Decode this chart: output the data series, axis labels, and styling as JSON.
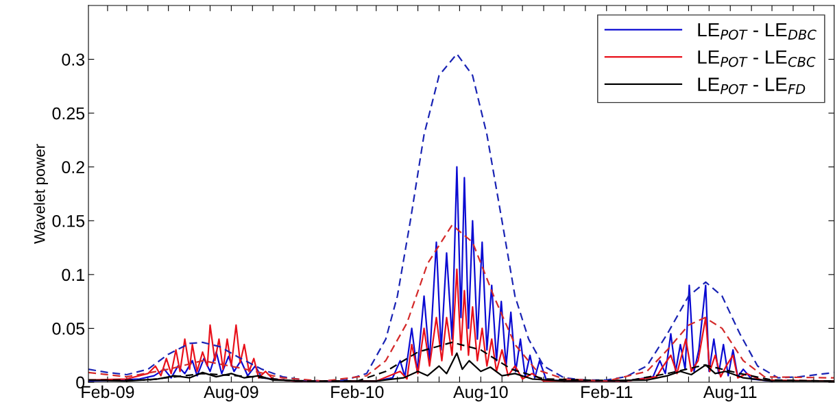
{
  "chart_data": {
    "type": "line",
    "ylabel": "Wavelet power",
    "xlim": [
      "2009-01-04",
      "2011-12-31"
    ],
    "ylim": [
      0,
      0.35
    ],
    "yticks": [
      0,
      0.05,
      0.1,
      0.15,
      0.2,
      0.25,
      0.3
    ],
    "xticks": [
      {
        "value": "2009-02-01",
        "label": "Feb-09"
      },
      {
        "value": "2009-03-01",
        "label": null
      },
      {
        "value": "2009-04-01",
        "label": null
      },
      {
        "value": "2009-05-01",
        "label": null
      },
      {
        "value": "2009-06-01",
        "label": null
      },
      {
        "value": "2009-07-01",
        "label": null
      },
      {
        "value": "2009-08-01",
        "label": "Aug-09"
      },
      {
        "value": "2009-09-01",
        "label": null
      },
      {
        "value": "2009-10-01",
        "label": null
      },
      {
        "value": "2009-11-01",
        "label": null
      },
      {
        "value": "2009-12-01",
        "label": null
      },
      {
        "value": "2010-01-01",
        "label": null
      },
      {
        "value": "2010-02-01",
        "label": "Feb-10"
      },
      {
        "value": "2010-03-01",
        "label": null
      },
      {
        "value": "2010-04-01",
        "label": null
      },
      {
        "value": "2010-05-01",
        "label": null
      },
      {
        "value": "2010-06-01",
        "label": null
      },
      {
        "value": "2010-07-01",
        "label": null
      },
      {
        "value": "2010-08-01",
        "label": "Aug-10"
      },
      {
        "value": "2010-09-01",
        "label": null
      },
      {
        "value": "2010-10-01",
        "label": null
      },
      {
        "value": "2010-11-01",
        "label": null
      },
      {
        "value": "2010-12-01",
        "label": null
      },
      {
        "value": "2011-01-01",
        "label": null
      },
      {
        "value": "2011-02-01",
        "label": "Feb-11"
      },
      {
        "value": "2011-03-01",
        "label": null
      },
      {
        "value": "2011-04-01",
        "label": null
      },
      {
        "value": "2011-05-01",
        "label": null
      },
      {
        "value": "2011-06-01",
        "label": null
      },
      {
        "value": "2011-07-01",
        "label": null
      },
      {
        "value": "2011-08-01",
        "label": "Aug-11"
      },
      {
        "value": "2011-09-01",
        "label": null
      },
      {
        "value": "2011-10-01",
        "label": null
      },
      {
        "value": "2011-11-01",
        "label": null
      },
      {
        "value": "2011-12-01",
        "label": null
      }
    ],
    "grid": false,
    "legend": "top right",
    "series": [
      {
        "name": "LE$_{POT}$ - LE$_{DBC}$",
        "color": "#0a0ad2",
        "line_style": "solid",
        "x": [
          "2009-01-04",
          "2009-02-15",
          "2009-03-20",
          "2009-04-10",
          "2009-04-25",
          "2009-05-05",
          "2009-05-15",
          "2009-05-25",
          "2009-06-05",
          "2009-06-12",
          "2009-06-22",
          "2009-07-01",
          "2009-07-10",
          "2009-07-18",
          "2009-07-28",
          "2009-08-05",
          "2009-08-15",
          "2009-08-25",
          "2009-09-05",
          "2009-09-15",
          "2009-10-01",
          "2009-11-01",
          "2010-01-01",
          "2010-03-01",
          "2010-03-25",
          "2010-04-05",
          "2010-04-12",
          "2010-04-22",
          "2010-04-30",
          "2010-05-10",
          "2010-05-18",
          "2010-05-28",
          "2010-06-04",
          "2010-06-12",
          "2010-06-20",
          "2010-06-27",
          "2010-07-03",
          "2010-07-08",
          "2010-07-14",
          "2010-07-20",
          "2010-07-27",
          "2010-08-03",
          "2010-08-10",
          "2010-08-17",
          "2010-08-24",
          "2010-08-31",
          "2010-09-07",
          "2010-09-14",
          "2010-09-21",
          "2010-09-28",
          "2010-10-05",
          "2010-10-12",
          "2010-10-19",
          "2010-10-26",
          "2010-11-05",
          "2010-12-15",
          "2011-03-01",
          "2011-04-10",
          "2011-04-20",
          "2011-04-28",
          "2011-05-06",
          "2011-05-13",
          "2011-05-20",
          "2011-05-27",
          "2011-06-02",
          "2011-06-09",
          "2011-06-16",
          "2011-06-26",
          "2011-07-01",
          "2011-07-08",
          "2011-07-15",
          "2011-07-22",
          "2011-07-29",
          "2011-08-05",
          "2011-08-12",
          "2011-08-20",
          "2011-09-01",
          "2011-10-01"
        ],
        "values": [
          0.001,
          0.002,
          0.003,
          0.006,
          0.012,
          0.004,
          0.015,
          0.008,
          0.02,
          0.006,
          0.022,
          0.01,
          0.028,
          0.008,
          0.024,
          0.01,
          0.02,
          0.006,
          0.015,
          0.004,
          0.003,
          0.001,
          0.001,
          0.001,
          0.004,
          0.02,
          0.005,
          0.05,
          0.01,
          0.08,
          0.02,
          0.13,
          0.03,
          0.12,
          0.04,
          0.2,
          0.06,
          0.19,
          0.05,
          0.15,
          0.04,
          0.13,
          0.03,
          0.09,
          0.02,
          0.075,
          0.015,
          0.065,
          0.01,
          0.04,
          0.005,
          0.025,
          0.004,
          0.02,
          0.002,
          0.001,
          0.001,
          0.005,
          0.02,
          0.008,
          0.045,
          0.01,
          0.035,
          0.012,
          0.09,
          0.01,
          0.03,
          0.09,
          0.01,
          0.04,
          0.008,
          0.035,
          0.006,
          0.03,
          0.005,
          0.012,
          0.003,
          0.001
        ]
      },
      {
        "name": "LE$_{POT}$ - LE$_{CBC}$",
        "color": "#e8101a",
        "line_style": "solid",
        "x": [
          "2009-01-04",
          "2009-03-01",
          "2009-04-01",
          "2009-04-12",
          "2009-04-20",
          "2009-04-28",
          "2009-05-05",
          "2009-05-12",
          "2009-05-18",
          "2009-05-25",
          "2009-06-01",
          "2009-06-05",
          "2009-06-12",
          "2009-06-20",
          "2009-06-27",
          "2009-07-01",
          "2009-07-08",
          "2009-07-14",
          "2009-07-20",
          "2009-07-26",
          "2009-08-01",
          "2009-08-08",
          "2009-08-14",
          "2009-08-20",
          "2009-08-27",
          "2009-09-03",
          "2009-09-10",
          "2009-09-20",
          "2009-10-01",
          "2009-11-01",
          "2010-03-01",
          "2010-04-05",
          "2010-04-15",
          "2010-04-22",
          "2010-05-01",
          "2010-05-10",
          "2010-05-18",
          "2010-05-28",
          "2010-06-05",
          "2010-06-12",
          "2010-06-20",
          "2010-06-27",
          "2010-07-03",
          "2010-07-08",
          "2010-07-14",
          "2010-07-20",
          "2010-07-27",
          "2010-08-03",
          "2010-08-10",
          "2010-08-17",
          "2010-08-24",
          "2010-09-01",
          "2010-09-10",
          "2010-09-20",
          "2010-10-01",
          "2010-10-15",
          "2010-11-01",
          "2011-03-01",
          "2011-04-15",
          "2011-04-25",
          "2011-05-06",
          "2011-05-15",
          "2011-05-28",
          "2011-06-05",
          "2011-06-15",
          "2011-06-26",
          "2011-07-02",
          "2011-07-10",
          "2011-07-18",
          "2011-07-26",
          "2011-08-05",
          "2011-08-12",
          "2011-08-25",
          "2011-09-15",
          "2011-12-31"
        ],
        "values": [
          0.002,
          0.003,
          0.008,
          0.015,
          0.006,
          0.022,
          0.008,
          0.03,
          0.01,
          0.04,
          0.012,
          0.035,
          0.01,
          0.028,
          0.015,
          0.053,
          0.02,
          0.04,
          0.012,
          0.04,
          0.015,
          0.053,
          0.018,
          0.035,
          0.01,
          0.022,
          0.004,
          0.01,
          0.003,
          0.001,
          0.001,
          0.01,
          0.003,
          0.035,
          0.008,
          0.05,
          0.015,
          0.06,
          0.02,
          0.06,
          0.025,
          0.105,
          0.03,
          0.085,
          0.025,
          0.07,
          0.02,
          0.05,
          0.015,
          0.04,
          0.01,
          0.03,
          0.006,
          0.015,
          0.003,
          0.008,
          0.001,
          0.001,
          0.005,
          0.015,
          0.025,
          0.008,
          0.04,
          0.01,
          0.02,
          0.06,
          0.01,
          0.025,
          0.005,
          0.015,
          0.025,
          0.004,
          0.008,
          0.002,
          0.001
        ]
      },
      {
        "name": "LE$_{POT}$ - LE$_{FD}$",
        "color": "#000000",
        "line_style": "solid",
        "x": [
          "2009-01-04",
          "2009-03-01",
          "2009-04-15",
          "2009-05-10",
          "2009-06-01",
          "2009-06-20",
          "2009-07-10",
          "2009-08-01",
          "2009-08-20",
          "2009-09-10",
          "2009-10-01",
          "2009-12-01",
          "2010-03-01",
          "2010-04-10",
          "2010-05-01",
          "2010-05-15",
          "2010-06-01",
          "2010-06-12",
          "2010-06-27",
          "2010-07-05",
          "2010-07-15",
          "2010-08-01",
          "2010-08-15",
          "2010-09-01",
          "2010-09-20",
          "2010-10-15",
          "2010-12-01",
          "2011-04-01",
          "2011-05-01",
          "2011-05-20",
          "2011-06-05",
          "2011-06-26",
          "2011-07-10",
          "2011-07-25",
          "2011-08-20",
          "2011-10-01",
          "2011-12-31"
        ],
        "values": [
          0.002,
          0.001,
          0.003,
          0.006,
          0.004,
          0.009,
          0.005,
          0.008,
          0.004,
          0.006,
          0.002,
          0.001,
          0.001,
          0.004,
          0.01,
          0.006,
          0.015,
          0.008,
          0.027,
          0.012,
          0.02,
          0.01,
          0.014,
          0.006,
          0.008,
          0.003,
          0.001,
          0.002,
          0.006,
          0.01,
          0.007,
          0.016,
          0.008,
          0.01,
          0.004,
          0.001,
          0.001
        ]
      },
      {
        "color": "#1a24b4",
        "line_style": "dashed",
        "x": [
          "2009-01-04",
          "2009-02-01",
          "2009-03-01",
          "2009-04-01",
          "2009-05-01",
          "2009-06-01",
          "2009-06-20",
          "2009-07-15",
          "2009-08-15",
          "2009-09-15",
          "2009-10-15",
          "2009-11-15",
          "2009-12-15",
          "2010-01-15",
          "2010-02-15",
          "2010-03-15",
          "2010-04-01",
          "2010-04-20",
          "2010-05-10",
          "2010-06-01",
          "2010-06-27",
          "2010-07-20",
          "2010-08-10",
          "2010-09-01",
          "2010-09-20",
          "2010-10-10",
          "2010-11-01",
          "2010-12-01",
          "2011-01-01",
          "2011-02-01",
          "2011-03-01",
          "2011-04-01",
          "2011-05-01",
          "2011-06-01",
          "2011-06-26",
          "2011-07-20",
          "2011-08-15",
          "2011-09-10",
          "2011-10-10",
          "2011-11-10",
          "2011-12-31"
        ],
        "values": [
          0.012,
          0.009,
          0.007,
          0.012,
          0.026,
          0.036,
          0.037,
          0.033,
          0.022,
          0.012,
          0.005,
          0.002,
          0.001,
          0.002,
          0.008,
          0.04,
          0.08,
          0.15,
          0.23,
          0.285,
          0.305,
          0.285,
          0.23,
          0.15,
          0.08,
          0.04,
          0.015,
          0.004,
          0.002,
          0.002,
          0.005,
          0.015,
          0.045,
          0.08,
          0.093,
          0.08,
          0.045,
          0.015,
          0.004,
          0.005,
          0.009
        ]
      },
      {
        "color": "#d42a2a",
        "line_style": "dashed",
        "x": [
          "2009-01-04",
          "2009-03-01",
          "2009-05-01",
          "2009-06-20",
          "2009-08-15",
          "2009-10-15",
          "2009-12-15",
          "2010-02-15",
          "2010-03-15",
          "2010-04-15",
          "2010-05-15",
          "2010-06-20",
          "2010-07-20",
          "2010-08-20",
          "2010-09-20",
          "2010-10-20",
          "2010-12-01",
          "2011-02-01",
          "2011-04-01",
          "2011-05-01",
          "2011-06-01",
          "2011-06-25",
          "2011-07-20",
          "2011-08-20",
          "2011-09-20",
          "2011-12-31"
        ],
        "values": [
          0.009,
          0.005,
          0.012,
          0.02,
          0.013,
          0.004,
          0.001,
          0.006,
          0.02,
          0.055,
          0.11,
          0.146,
          0.13,
          0.08,
          0.035,
          0.012,
          0.003,
          0.001,
          0.01,
          0.03,
          0.053,
          0.06,
          0.05,
          0.02,
          0.005,
          0.004
        ]
      },
      {
        "color": "#000000",
        "line_style": "dashed",
        "x": [
          "2009-01-04",
          "2009-04-01",
          "2009-06-20",
          "2009-09-01",
          "2009-11-01",
          "2010-02-01",
          "2010-03-15",
          "2010-05-01",
          "2010-06-20",
          "2010-08-01",
          "2010-09-15",
          "2010-11-01",
          "2011-03-01",
          "2011-05-01",
          "2011-06-25",
          "2011-08-15",
          "2011-10-01",
          "2011-12-31"
        ],
        "values": [
          0.002,
          0.002,
          0.008,
          0.005,
          0.001,
          0.001,
          0.01,
          0.028,
          0.037,
          0.03,
          0.012,
          0.003,
          0.001,
          0.008,
          0.016,
          0.008,
          0.002,
          0.001
        ]
      }
    ]
  }
}
